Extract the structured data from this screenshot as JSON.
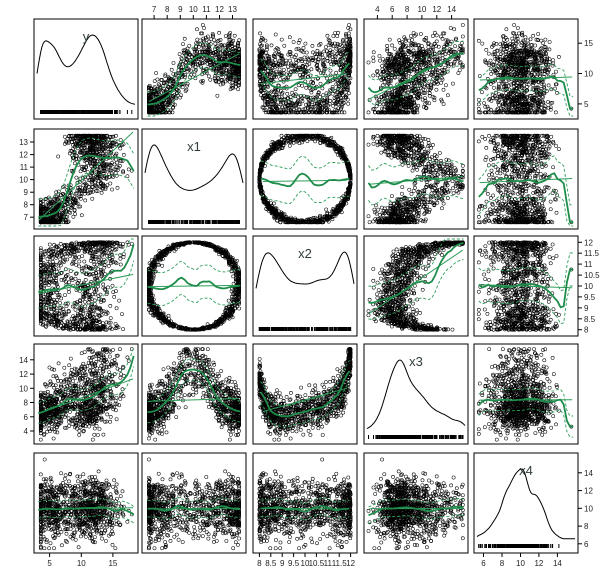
{
  "chart_data": {
    "type": "scatter",
    "subtype": "scatterplot-matrix",
    "variables": [
      "y",
      "x1",
      "x2",
      "x3",
      "x4"
    ],
    "ranges": {
      "y": [
        3.0,
        18.5
      ],
      "x1": [
        6.3,
        13.8
      ],
      "x2": [
        7.85,
        12.15
      ],
      "x3": [
        2.6,
        15.8
      ],
      "x4": [
        5.3,
        15.9
      ]
    },
    "ticks": {
      "y": [
        5,
        10,
        15
      ],
      "x1": [
        7,
        8,
        9,
        10,
        11,
        12,
        13
      ],
      "x2": [
        8,
        8.5,
        9,
        9.5,
        10,
        10.5,
        11,
        11.5,
        12
      ],
      "x3": [
        4,
        6,
        8,
        10,
        12,
        14
      ],
      "x4": [
        6,
        8,
        10,
        12,
        14
      ]
    },
    "tick_labels": {
      "y": [
        "5",
        "10",
        "15"
      ],
      "x1": [
        "7",
        "8",
        "9",
        "10",
        "11",
        "12",
        "13"
      ],
      "x2": [
        "8",
        "8.5",
        "9",
        "9.5",
        "10",
        "10.5",
        "11",
        "11.5",
        "12"
      ],
      "x3": [
        "4",
        "6",
        "8",
        "10",
        "12",
        "14"
      ],
      "x4": [
        "6",
        "8",
        "10",
        "12",
        "14"
      ]
    },
    "axes": {
      "top": [
        "x1",
        "x3"
      ],
      "bottom": [
        "y",
        "x2",
        "x4"
      ],
      "left": [
        "x1",
        "x3"
      ],
      "right": [
        "y",
        "x2",
        "x4"
      ]
    },
    "diagonal": "kernel density with rug",
    "smoother_color": "#1e8c4a",
    "n_points_per_panel": 1000,
    "grid": false
  }
}
